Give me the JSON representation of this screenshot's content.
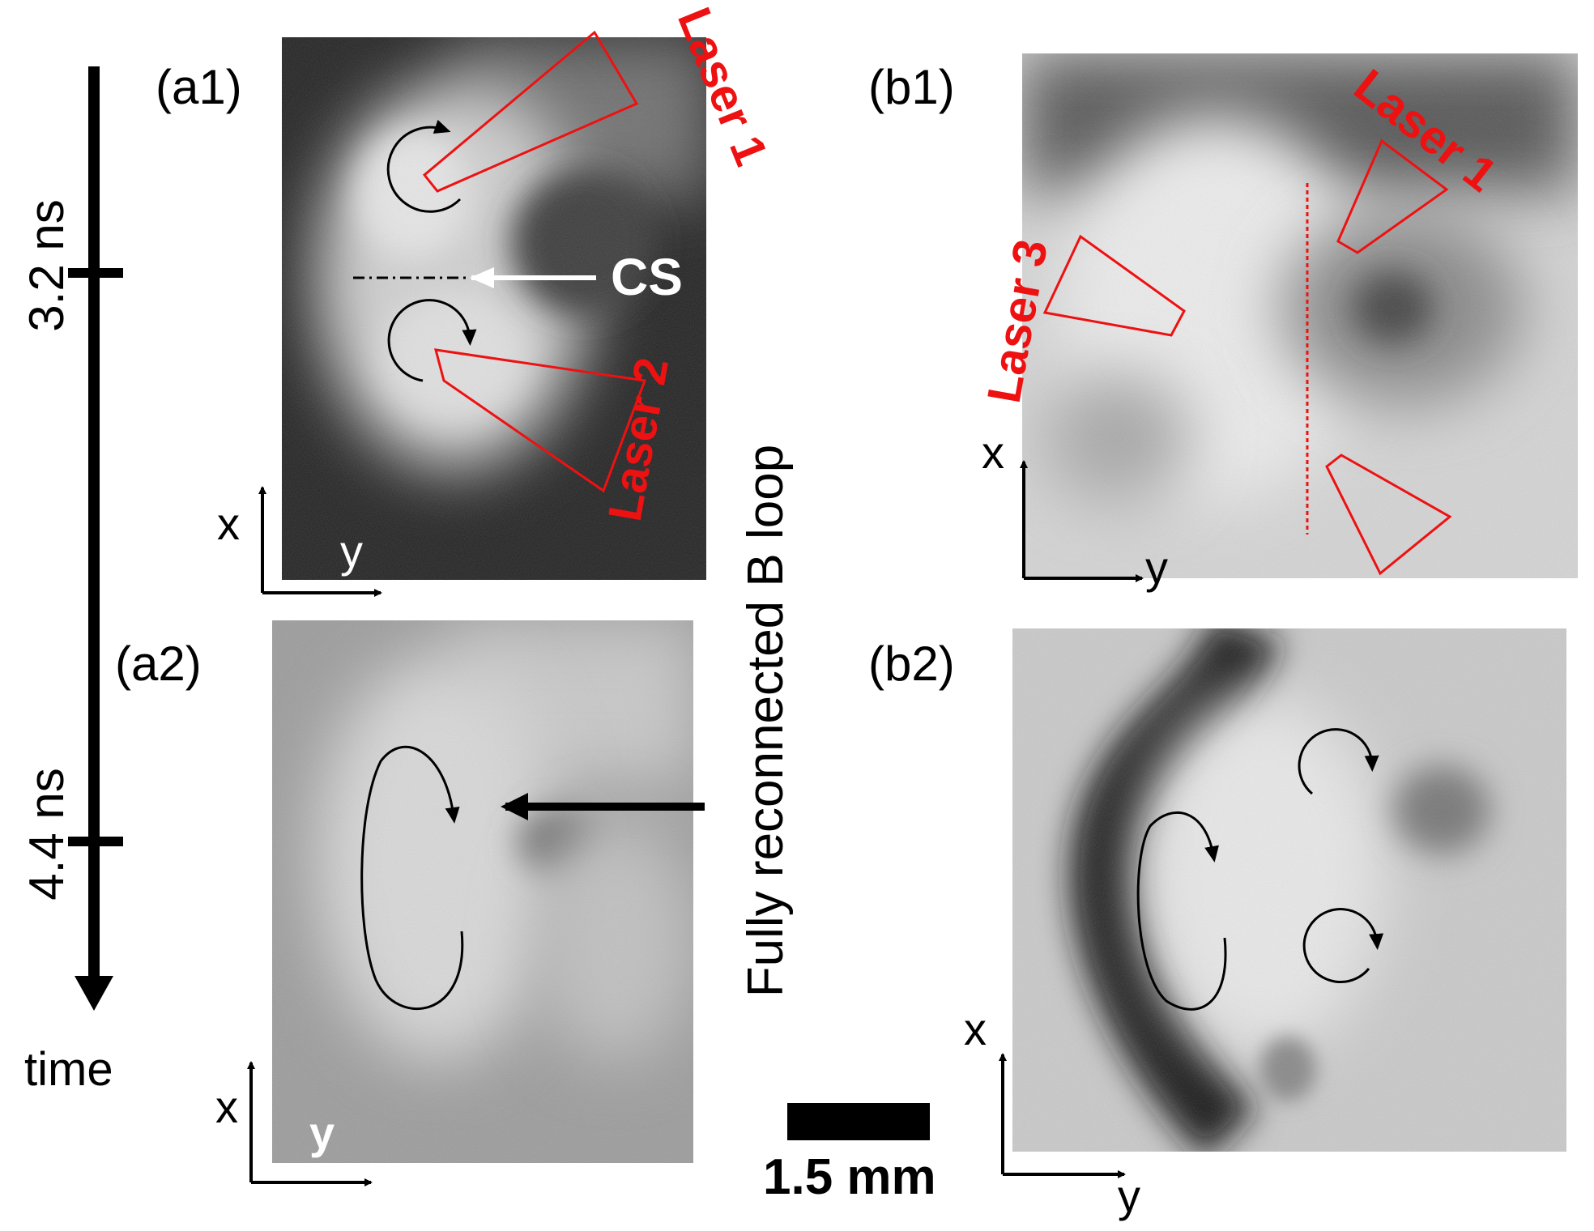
{
  "timeline": {
    "label": "time",
    "ticks": [
      {
        "value": 3.2,
        "label": "3.2 ns"
      },
      {
        "value": 4.4,
        "label": "4.4 ns"
      }
    ]
  },
  "panels": {
    "a1": {
      "label": "(a1)",
      "axis_x": "x",
      "axis_y": "y",
      "laser_top": "Laser 1",
      "laser_bottom": "Laser 2",
      "cs_label": "CS"
    },
    "a2": {
      "label": "(a2)",
      "axis_x": "x",
      "axis_y": "y"
    },
    "b1": {
      "label": "(b1)",
      "axis_x": "x",
      "axis_y": "y",
      "laser_right": "Laser 1",
      "laser_left": "Laser 3"
    },
    "b2": {
      "label": "(b2)",
      "axis_x": "x",
      "axis_y": "y"
    }
  },
  "annotation": {
    "reconnected": "Fully reconnected B loop"
  },
  "scalebar": {
    "label": "1.5 mm"
  }
}
